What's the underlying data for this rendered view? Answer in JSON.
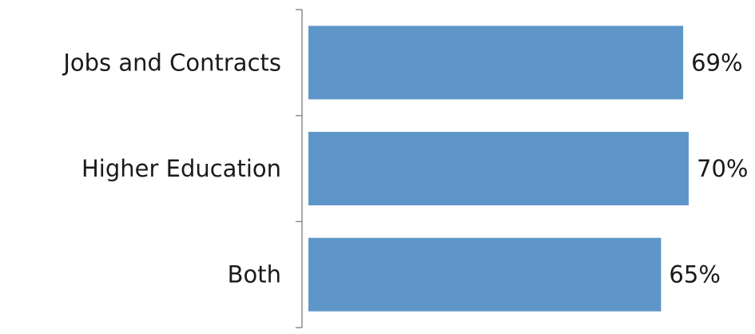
{
  "chart_data": {
    "type": "bar",
    "orientation": "horizontal",
    "categories": [
      "Jobs and Contracts",
      "Higher Education",
      "Both"
    ],
    "values": [
      69,
      70,
      65
    ],
    "value_labels": [
      "69%",
      "70%",
      "65%"
    ],
    "title": "",
    "xlabel": "",
    "ylabel": "",
    "xlim": [
      0,
      70
    ],
    "grid": false,
    "legend": "none",
    "bar_color": "#5f96c9",
    "axis_color": "#8c8c8c"
  }
}
